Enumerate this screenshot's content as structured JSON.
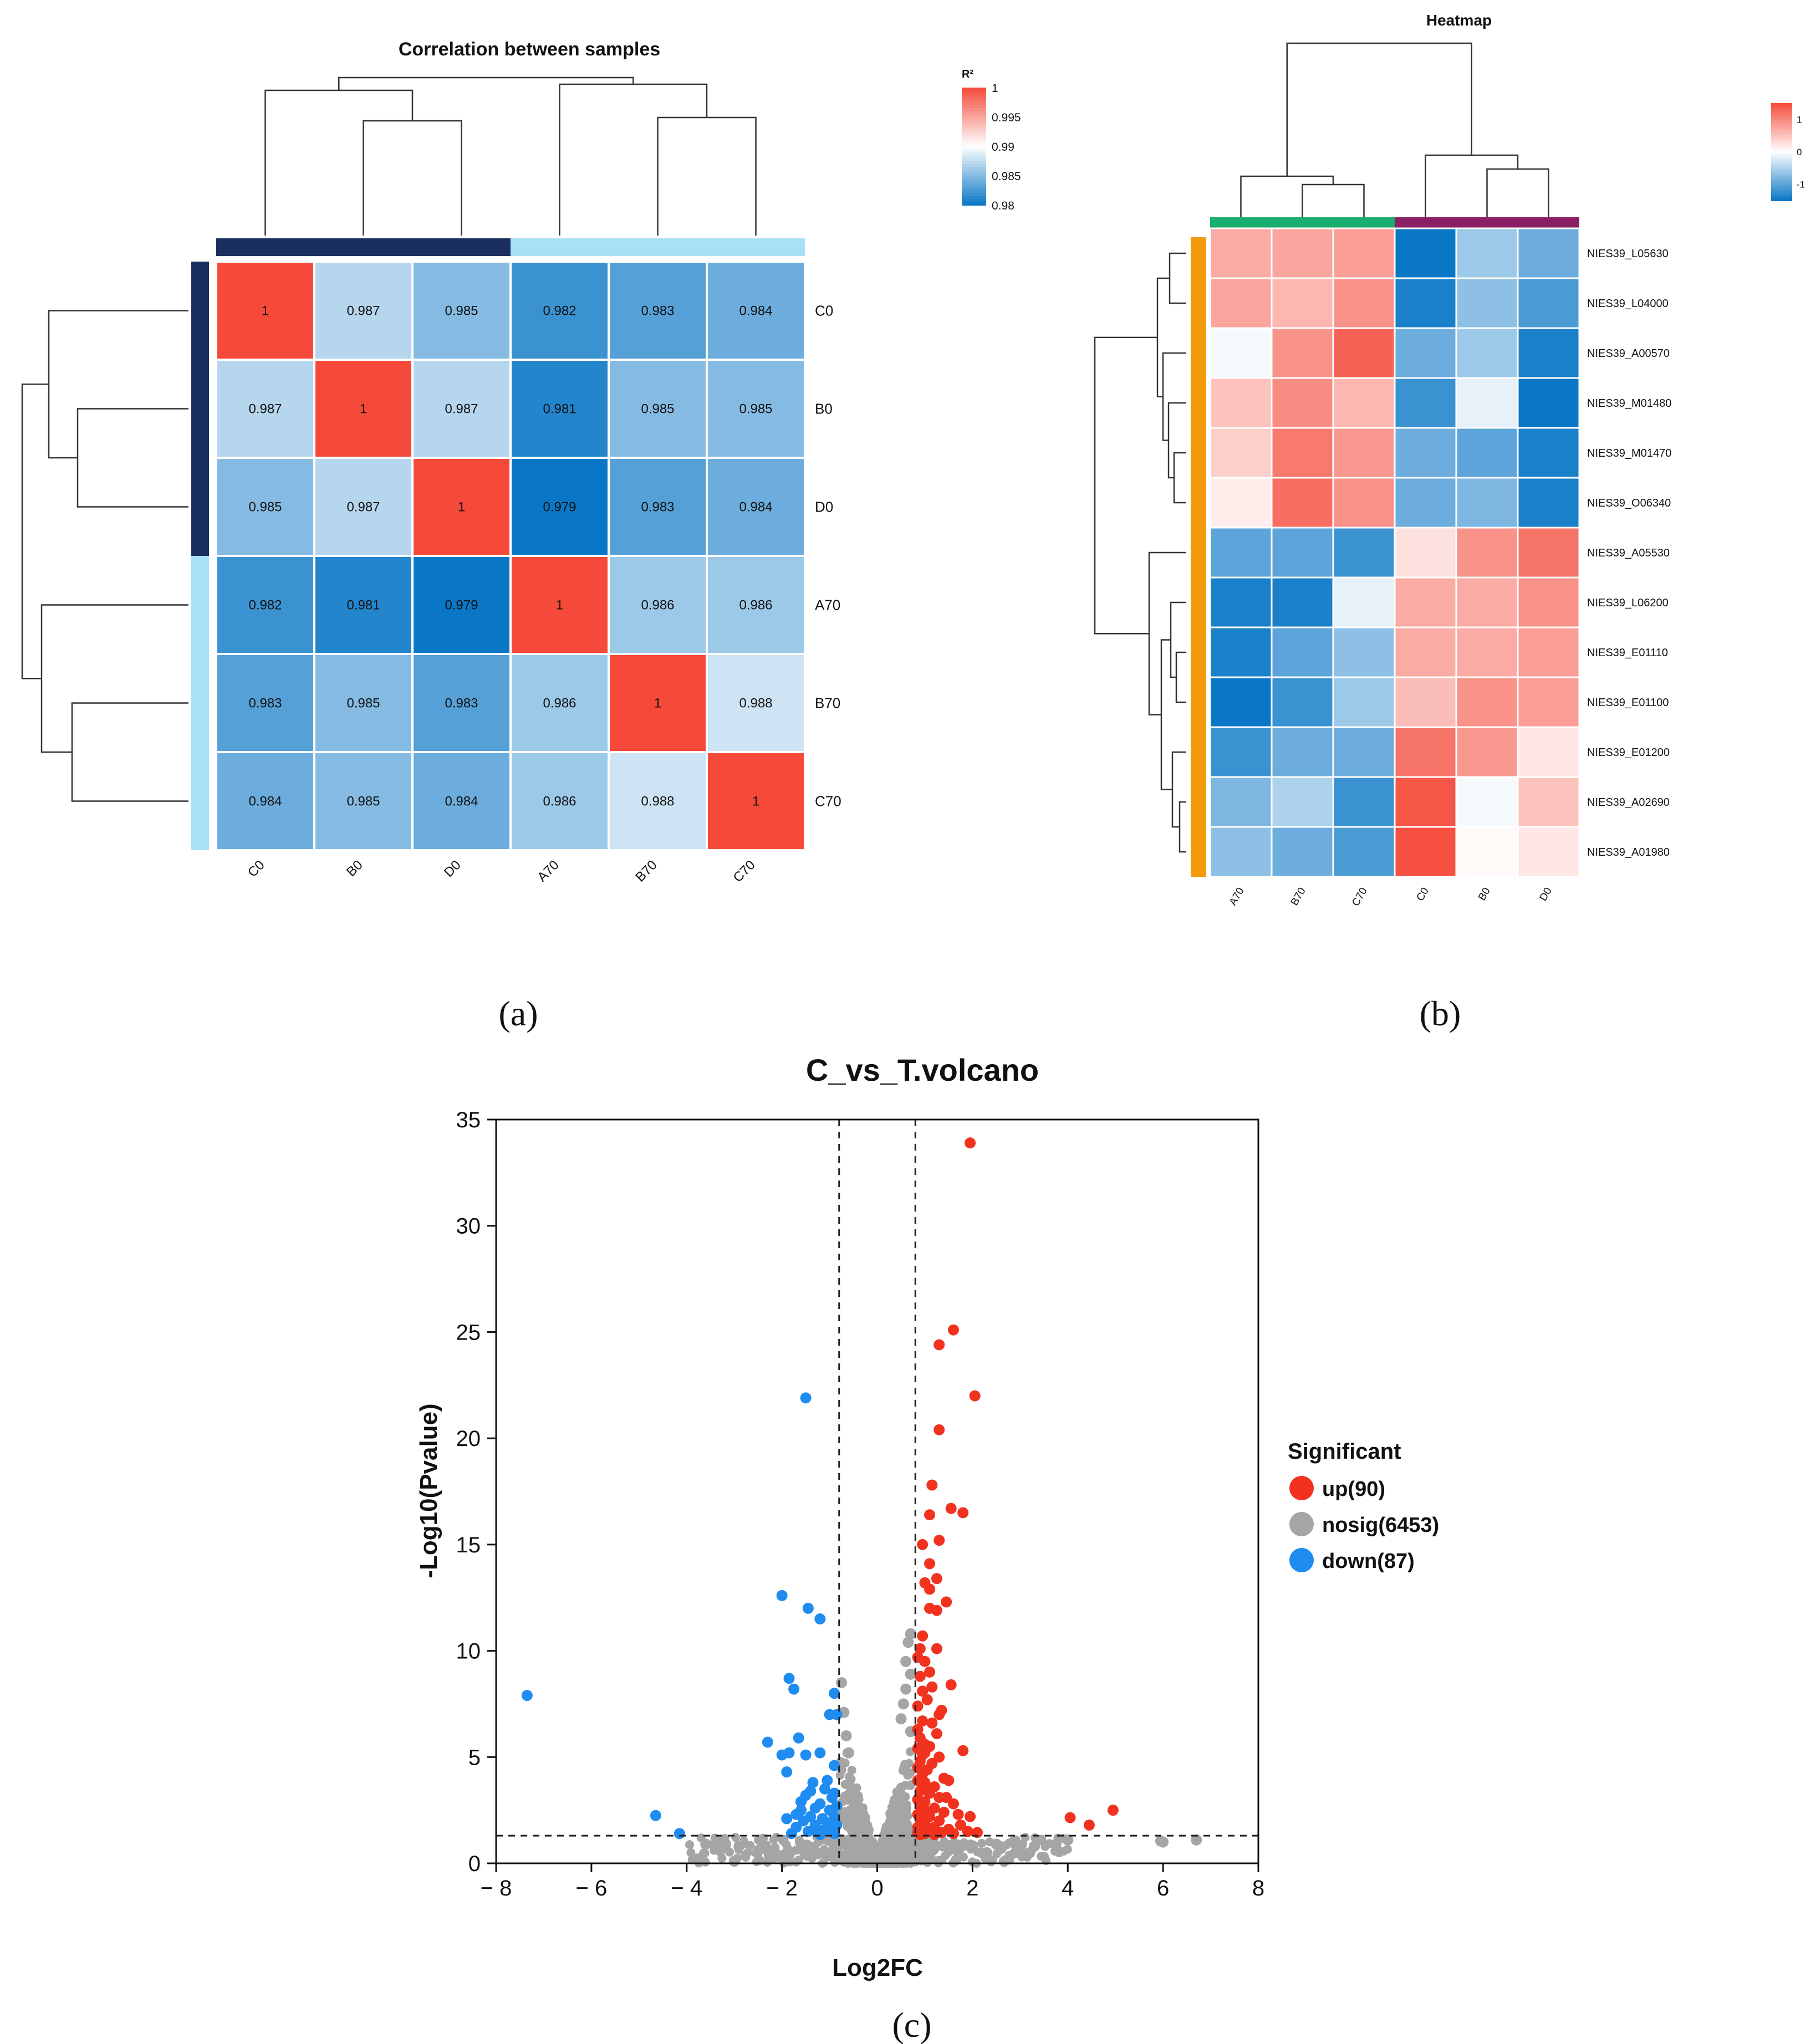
{
  "colors": {
    "red": "#f54a3a",
    "blue": "#0a77c6",
    "white": "#ffffff",
    "dark_navy": "#1b2f5e",
    "light_blue": "#a8e1f7",
    "green": "#19ad6e",
    "purple": "#8a1f66",
    "orange": "#f29a0c",
    "gray": "#a5a5a5",
    "up_red": "#f0321e",
    "down_blue": "#1e8cf0"
  },
  "panel_labels": {
    "a": "(a)",
    "b": "(b)",
    "c": "(c)"
  },
  "chart_data": [
    {
      "type": "heatmap",
      "id": "correlation",
      "title": "Correlation between samples",
      "legend_title": "R²",
      "legend_ticks": [
        "1",
        "0.995",
        "0.99",
        "0.985",
        "0.98"
      ],
      "legend_range": [
        0.98,
        1.0
      ],
      "rows": [
        "C0",
        "B0",
        "D0",
        "A70",
        "B70",
        "C70"
      ],
      "columns": [
        "C0",
        "B0",
        "D0",
        "A70",
        "B70",
        "C70"
      ],
      "values": [
        [
          1,
          0.987,
          0.985,
          0.982,
          0.983,
          0.984
        ],
        [
          0.987,
          1,
          0.987,
          0.981,
          0.985,
          0.985
        ],
        [
          0.985,
          0.987,
          1,
          0.979,
          0.983,
          0.984
        ],
        [
          0.982,
          0.981,
          0.979,
          1,
          0.986,
          0.986
        ],
        [
          0.983,
          0.985,
          0.983,
          0.986,
          1,
          0.988
        ],
        [
          0.984,
          0.985,
          0.984,
          0.986,
          0.988,
          1
        ]
      ],
      "value_labels": [
        [
          "1",
          "0.987",
          "0.985",
          "0.982",
          "0.983",
          "0.984"
        ],
        [
          "0.987",
          "1",
          "0.987",
          "0.981",
          "0.985",
          "0.985"
        ],
        [
          "0.985",
          "0.987",
          "1",
          "0.979",
          "0.983",
          "0.984"
        ],
        [
          "0.982",
          "0.981",
          "0.979",
          "1",
          "0.986",
          "0.986"
        ],
        [
          "0.983",
          "0.985",
          "0.983",
          "0.986",
          "1",
          "0.988"
        ],
        [
          "0.984",
          "0.985",
          "0.984",
          "0.986",
          "0.988",
          "1"
        ]
      ],
      "groups": [
        {
          "members": [
            "C0",
            "B0",
            "D0"
          ],
          "color": "dark_navy"
        },
        {
          "members": [
            "A70",
            "B70",
            "C70"
          ],
          "color": "light_blue"
        }
      ]
    },
    {
      "type": "heatmap",
      "id": "expression",
      "title": "Heatmap",
      "legend_ticks": [
        "1",
        "0",
        "-1"
      ],
      "legend_range": [
        -1.5,
        1.5
      ],
      "rows": [
        "NIES39_L05630",
        "NIES39_L04000",
        "NIES39_A00570",
        "NIES39_M01480",
        "NIES39_M01470",
        "NIES39_O06340",
        "NIES39_A05530",
        "NIES39_L06200",
        "NIES39_E01110",
        "NIES39_E01100",
        "NIES39_E01200",
        "NIES39_A02690",
        "NIES39_A01980"
      ],
      "columns": [
        "A70",
        "B70",
        "C70",
        "C0",
        "B0",
        "D0"
      ],
      "values": [
        [
          0.7,
          0.75,
          0.8,
          -1.5,
          -0.6,
          -0.9
        ],
        [
          0.75,
          0.6,
          0.9,
          -1.4,
          -0.7,
          -1.1
        ],
        [
          -0.05,
          0.9,
          1.3,
          -0.9,
          -0.6,
          -1.4
        ],
        [
          0.5,
          0.95,
          0.6,
          -1.2,
          -0.15,
          -1.5
        ],
        [
          0.4,
          1.1,
          0.85,
          -0.9,
          -1.0,
          -1.4
        ],
        [
          0.15,
          1.2,
          0.9,
          -0.9,
          -0.8,
          -1.4
        ],
        [
          -1.0,
          -1.0,
          -1.2,
          0.25,
          0.9,
          1.15
        ],
        [
          -1.4,
          -1.4,
          -0.15,
          0.7,
          0.7,
          0.9
        ],
        [
          -1.4,
          -1.0,
          -0.7,
          0.7,
          0.7,
          0.8
        ],
        [
          -1.5,
          -1.2,
          -0.6,
          0.55,
          0.9,
          0.8
        ],
        [
          -1.2,
          -0.9,
          -0.9,
          1.15,
          0.85,
          0.2
        ],
        [
          -0.8,
          -0.5,
          -1.2,
          1.4,
          -0.05,
          0.5
        ],
        [
          -0.7,
          -0.9,
          -1.1,
          1.45,
          0.05,
          0.2
        ]
      ],
      "column_groups": [
        {
          "members": [
            "A70",
            "B70",
            "C70"
          ],
          "color": "green"
        },
        {
          "members": [
            "C0",
            "B0",
            "D0"
          ],
          "color": "purple"
        }
      ],
      "row_group_color": "orange"
    },
    {
      "type": "scatter",
      "id": "volcano",
      "title": "C_vs_T.volcano",
      "xlabel": "Log2FC",
      "ylabel": "-Log10(Pvalue)",
      "xlim": [
        -8,
        8
      ],
      "ylim": [
        0,
        35
      ],
      "xticks": [
        -8,
        -6,
        -4,
        -2,
        0,
        2,
        4,
        6,
        8
      ],
      "xtick_labels": [
        "− 8",
        "− 6",
        "− 4",
        "− 2",
        "0",
        "2",
        "4",
        "6",
        "8"
      ],
      "yticks": [
        0,
        5,
        10,
        15,
        20,
        25,
        30,
        35
      ],
      "ytick_labels": [
        "0",
        "5",
        "10",
        "15",
        "20",
        "25",
        "30",
        "35"
      ],
      "threshold_x": [
        -0.8,
        0.8
      ],
      "threshold_y": 1.3,
      "legend_title": "Significant",
      "legend": [
        {
          "label": "up(90)",
          "color": "up_red"
        },
        {
          "label": "nosig(6453)",
          "color": "gray"
        },
        {
          "label": "down(87)",
          "color": "down_blue"
        }
      ],
      "series": [
        {
          "name": "up",
          "points": [
            [
              1.95,
              33.9
            ],
            [
              1.6,
              25.1
            ],
            [
              1.3,
              24.4
            ],
            [
              2.05,
              22.0
            ],
            [
              1.3,
              20.4
            ],
            [
              1.15,
              17.8
            ],
            [
              1.55,
              16.7
            ],
            [
              1.8,
              16.5
            ],
            [
              1.1,
              16.4
            ],
            [
              1.3,
              15.2
            ],
            [
              0.95,
              15.0
            ],
            [
              1.1,
              14.1
            ],
            [
              1.25,
              13.4
            ],
            [
              1.0,
              13.2
            ],
            [
              1.1,
              12.9
            ],
            [
              1.45,
              12.3
            ],
            [
              1.1,
              12.0
            ],
            [
              1.25,
              11.9
            ],
            [
              0.95,
              10.7
            ],
            [
              0.9,
              10.1
            ],
            [
              1.25,
              10.1
            ],
            [
              0.85,
              9.7
            ],
            [
              1.0,
              9.5
            ],
            [
              1.1,
              9.0
            ],
            [
              0.9,
              8.8
            ],
            [
              1.55,
              8.4
            ],
            [
              0.95,
              8.1
            ],
            [
              1.05,
              7.7
            ],
            [
              0.85,
              7.4
            ],
            [
              1.3,
              7.0
            ],
            [
              0.95,
              6.7
            ],
            [
              1.15,
              6.6
            ],
            [
              0.85,
              6.3
            ],
            [
              1.25,
              6.1
            ],
            [
              0.9,
              5.9
            ],
            [
              1.0,
              5.6
            ],
            [
              1.1,
              5.5
            ],
            [
              0.85,
              5.4
            ],
            [
              1.8,
              5.3
            ],
            [
              1.0,
              5.2
            ],
            [
              1.3,
              5.0
            ],
            [
              0.9,
              4.8
            ],
            [
              1.15,
              4.7
            ],
            [
              0.85,
              4.5
            ],
            [
              1.05,
              4.4
            ],
            [
              0.95,
              4.2
            ],
            [
              1.4,
              4.0
            ],
            [
              0.85,
              3.9
            ],
            [
              1.0,
              3.8
            ],
            [
              1.2,
              3.6
            ],
            [
              0.9,
              3.4
            ],
            [
              1.1,
              3.3
            ],
            [
              1.3,
              3.1
            ],
            [
              1.45,
              3.1
            ],
            [
              0.85,
              3.0
            ],
            [
              1.0,
              2.9
            ],
            [
              1.6,
              2.8
            ],
            [
              0.9,
              2.7
            ],
            [
              1.2,
              2.6
            ],
            [
              1.0,
              2.5
            ],
            [
              1.4,
              2.4
            ],
            [
              0.85,
              2.3
            ],
            [
              1.7,
              2.3
            ],
            [
              1.1,
              2.2
            ],
            [
              4.95,
              2.5
            ],
            [
              4.05,
              2.15
            ],
            [
              1.95,
              2.2
            ],
            [
              0.9,
              2.1
            ],
            [
              1.3,
              2.0
            ],
            [
              1.0,
              1.9
            ],
            [
              4.45,
              1.8
            ],
            [
              1.75,
              1.8
            ],
            [
              0.85,
              1.7
            ],
            [
              1.2,
              1.7
            ],
            [
              1.5,
              1.6
            ],
            [
              0.95,
              1.6
            ],
            [
              1.1,
              1.5
            ],
            [
              1.9,
              1.5
            ],
            [
              0.85,
              1.45
            ],
            [
              1.35,
              1.45
            ],
            [
              1.0,
              1.4
            ],
            [
              1.6,
              1.4
            ],
            [
              2.1,
              1.45
            ],
            [
              0.9,
              1.35
            ],
            [
              1.2,
              1.35
            ],
            [
              1.05,
              3.5
            ],
            [
              1.5,
              3.9
            ],
            [
              0.95,
              5.1
            ],
            [
              1.15,
              8.3
            ],
            [
              1.35,
              7.2
            ]
          ]
        },
        {
          "name": "down",
          "points": [
            [
              -7.35,
              7.9
            ],
            [
              -1.5,
              21.9
            ],
            [
              -2.0,
              12.6
            ],
            [
              -1.45,
              12.0
            ],
            [
              -1.2,
              11.5
            ],
            [
              -1.85,
              8.7
            ],
            [
              -1.75,
              8.2
            ],
            [
              -0.9,
              8.0
            ],
            [
              -1.0,
              7.0
            ],
            [
              -0.85,
              7.0
            ],
            [
              -2.3,
              5.7
            ],
            [
              -1.65,
              5.9
            ],
            [
              -1.85,
              5.2
            ],
            [
              -1.5,
              5.1
            ],
            [
              -1.2,
              5.2
            ],
            [
              -2.0,
              5.1
            ],
            [
              -1.9,
              4.3
            ],
            [
              -0.9,
              4.6
            ],
            [
              -1.4,
              3.4
            ],
            [
              -1.5,
              3.2
            ],
            [
              -1.1,
              3.5
            ],
            [
              -0.95,
              3.1
            ],
            [
              -1.6,
              2.9
            ],
            [
              -1.2,
              2.8
            ],
            [
              -0.85,
              2.7
            ],
            [
              -1.3,
              2.6
            ],
            [
              -1.0,
              2.5
            ],
            [
              -1.7,
              2.3
            ],
            [
              -1.4,
              2.2
            ],
            [
              -0.9,
              2.2
            ],
            [
              -1.15,
              2.1
            ],
            [
              -1.9,
              2.1
            ],
            [
              -1.55,
              2.0
            ],
            [
              -1.0,
              1.9
            ],
            [
              -1.3,
              1.8
            ],
            [
              -0.85,
              1.8
            ],
            [
              -1.7,
              1.7
            ],
            [
              -1.1,
              1.6
            ],
            [
              -1.45,
              1.5
            ],
            [
              -0.95,
              1.5
            ],
            [
              -1.25,
              1.45
            ],
            [
              -4.65,
              2.25
            ],
            [
              -4.15,
              1.4
            ],
            [
              -1.8,
              1.4
            ],
            [
              -1.05,
              3.9
            ],
            [
              -1.35,
              3.8
            ],
            [
              -0.9,
              3.3
            ],
            [
              -1.6,
              2.5
            ],
            [
              -1.2,
              1.35
            ],
            [
              -0.9,
              1.4
            ]
          ]
        },
        {
          "name": "nosig",
          "points": [
            [
              6.7,
              1.1
            ],
            [
              6.0,
              1.0
            ],
            [
              5.95,
              1.05
            ],
            [
              4.0,
              1.1
            ],
            [
              3.75,
              0.9
            ],
            [
              3.3,
              0.8
            ],
            [
              3.0,
              0.75
            ],
            [
              2.6,
              0.7
            ],
            [
              2.3,
              0.5
            ],
            [
              2.5,
              0.9
            ],
            [
              3.2,
              0.5
            ],
            [
              2.9,
              0.5
            ],
            [
              -3.0,
              0.1
            ],
            [
              -3.3,
              0.6
            ],
            [
              -2.5,
              0.6
            ],
            [
              -3.6,
              0.9
            ],
            [
              -2.9,
              0.8
            ],
            [
              -2.2,
              0.6
            ],
            [
              -0.75,
              8.5
            ],
            [
              -0.7,
              7.1
            ],
            [
              -0.65,
              6.0
            ],
            [
              -0.6,
              5.2
            ],
            [
              0.7,
              10.8
            ],
            [
              0.65,
              10.4
            ],
            [
              0.6,
              9.5
            ],
            [
              0.7,
              8.9
            ],
            [
              0.6,
              8.2
            ],
            [
              0.55,
              7.5
            ],
            [
              0.5,
              6.8
            ],
            [
              0.7,
              6.2
            ]
          ]
        }
      ]
    }
  ]
}
